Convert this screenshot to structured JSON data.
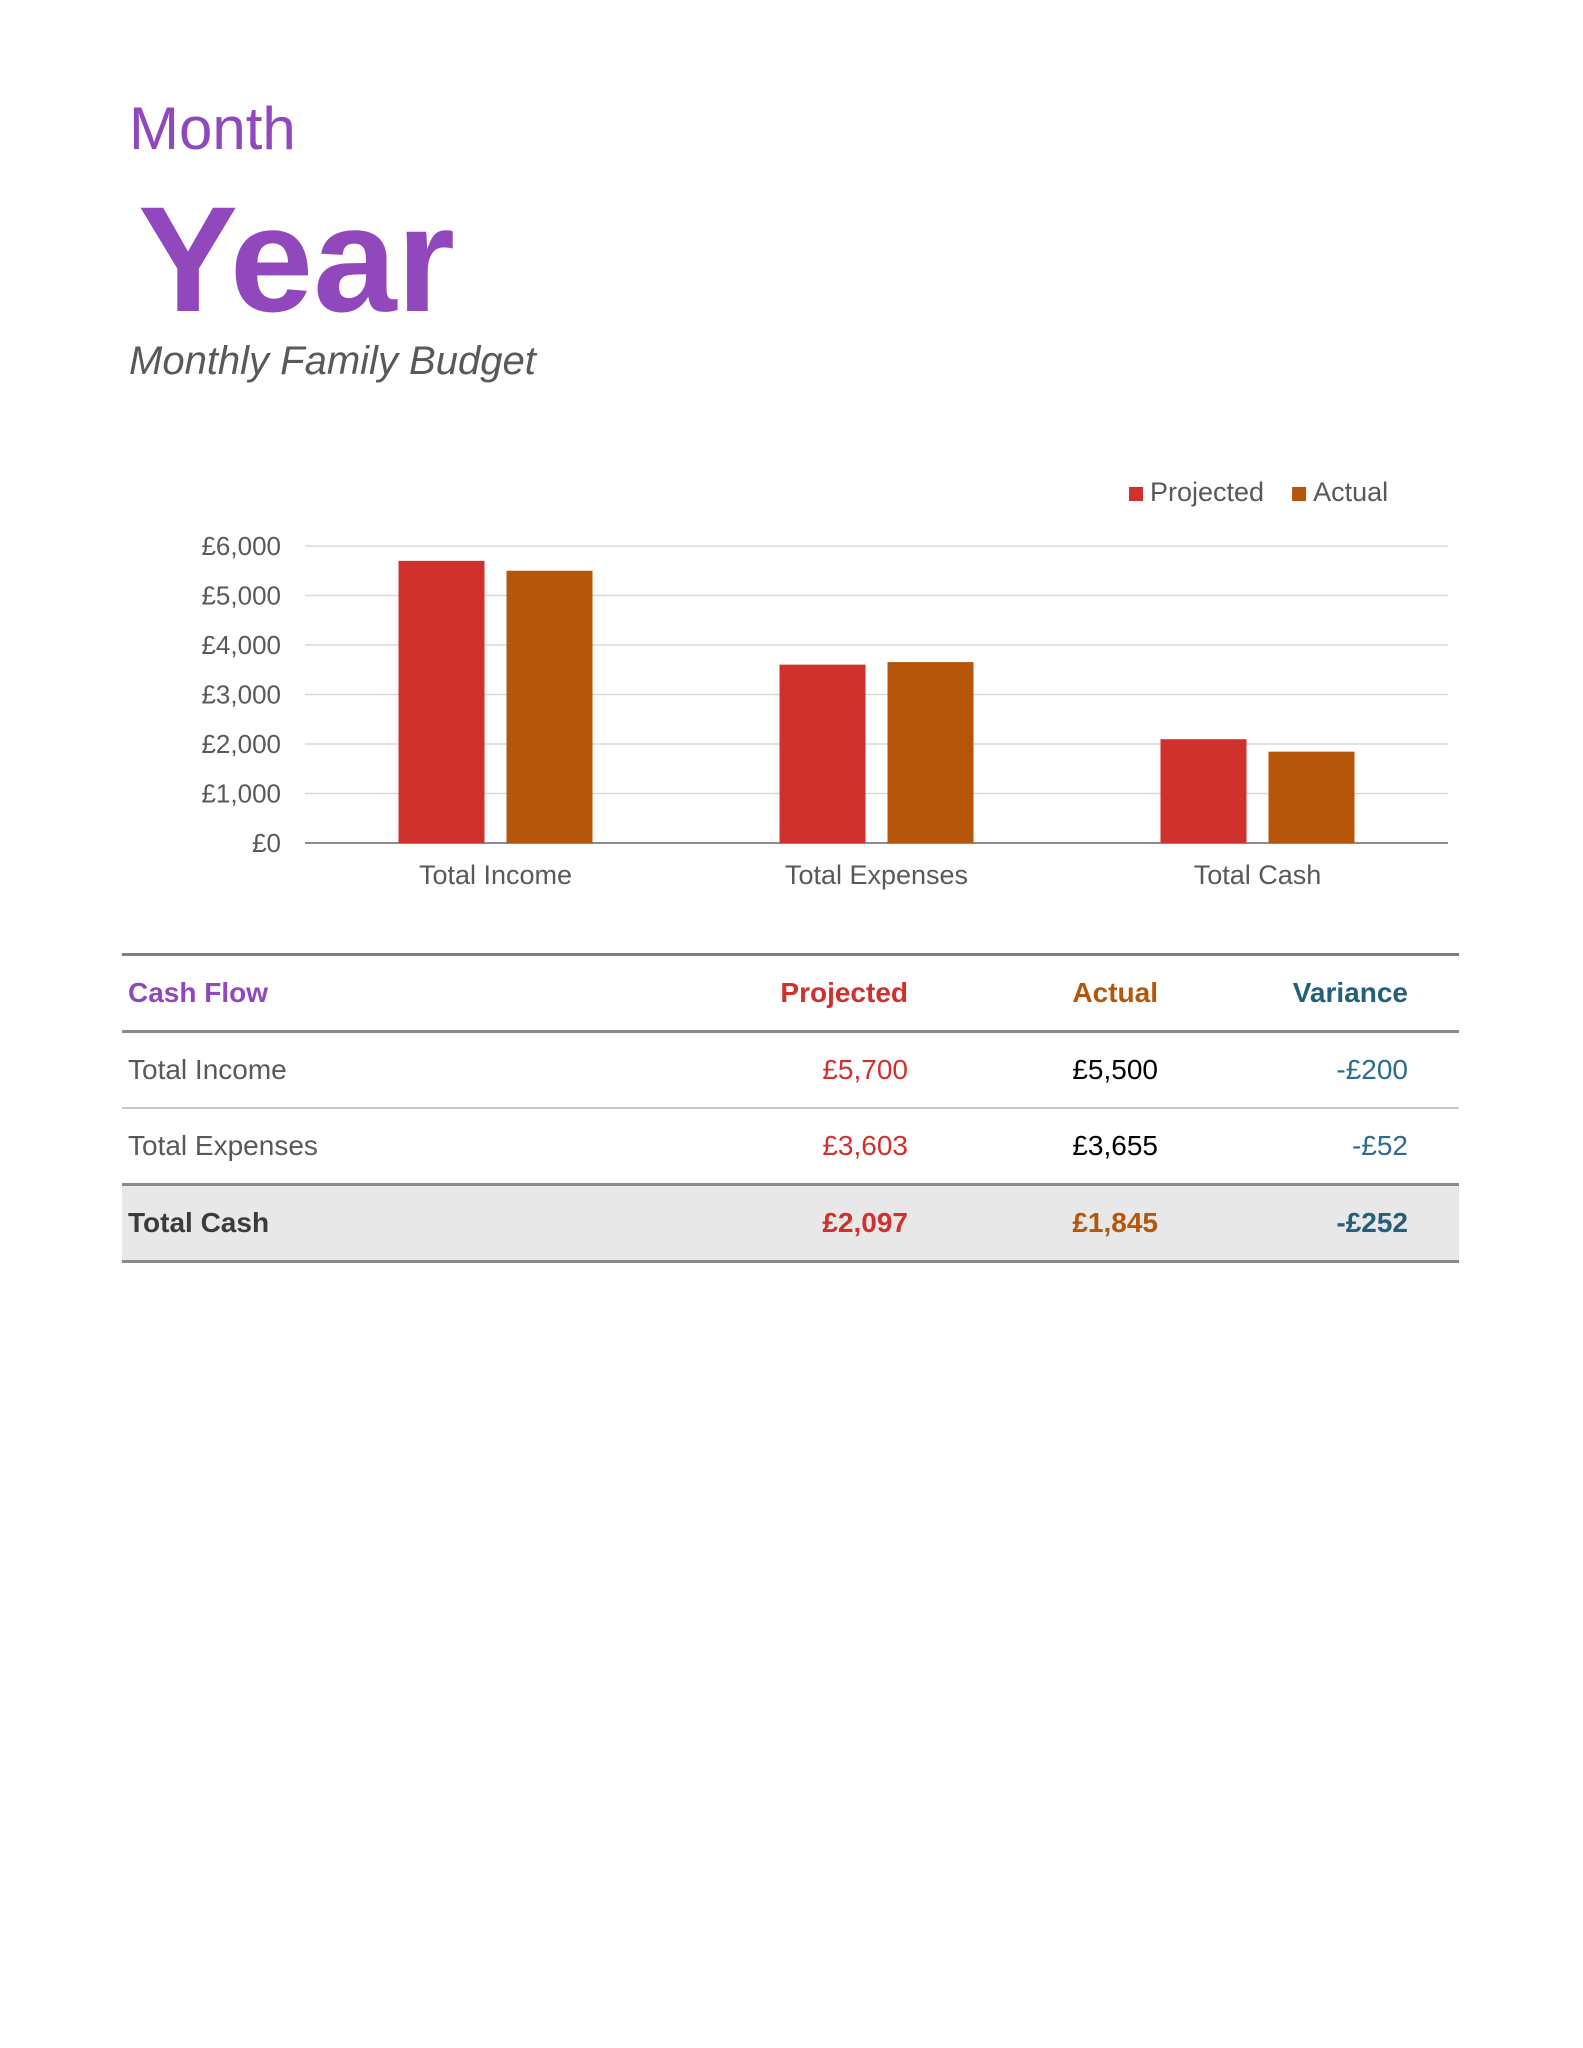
{
  "header": {
    "month": "Month",
    "year": "Year",
    "subtitle": "Monthly Family Budget"
  },
  "colors": {
    "title_purple": "#9248bd",
    "projected": "#d0312d",
    "actual": "#b5560b",
    "variance": "#2a6b8f"
  },
  "chart_data": {
    "type": "bar",
    "categories": [
      "Total Income",
      "Total Expenses",
      "Total Cash"
    ],
    "series": [
      {
        "name": "Projected",
        "values": [
          5700,
          3603,
          2097
        ],
        "color": "#d0312d"
      },
      {
        "name": "Actual",
        "values": [
          5500,
          3655,
          1845
        ],
        "color": "#b5560b"
      }
    ],
    "ylim": [
      0,
      6000
    ],
    "yticks": [
      0,
      1000,
      2000,
      3000,
      4000,
      5000,
      6000
    ],
    "ytick_labels": [
      "£0",
      "£1,000",
      "£2,000",
      "£3,000",
      "£4,000",
      "£5,000",
      "£6,000"
    ],
    "grid": true,
    "legend": "top-right"
  },
  "table": {
    "headers": {
      "label": "Cash Flow",
      "projected": "Projected",
      "actual": "Actual",
      "variance": "Variance"
    },
    "rows": [
      {
        "label": "Total Income",
        "projected": "£5,700",
        "actual": "£5,500",
        "variance": "-£200"
      },
      {
        "label": "Total Expenses",
        "projected": "£3,603",
        "actual": "£3,655",
        "variance": "-£52"
      }
    ],
    "total": {
      "label": "Total Cash",
      "projected": "£2,097",
      "actual": "£1,845",
      "variance": "-£252"
    }
  }
}
